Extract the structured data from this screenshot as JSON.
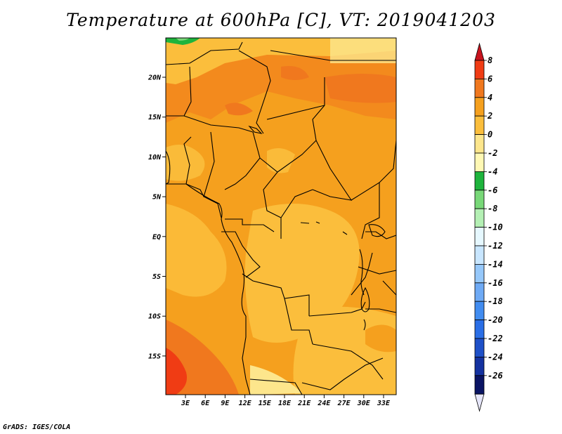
{
  "title": "Temperature at 600hPa [C], VT: 2019041203",
  "footer": "GrADS: IGES/COLA",
  "map": {
    "lat_labels": [
      "20N",
      "15N",
      "10N",
      "5N",
      "EQ",
      "5S",
      "10S",
      "15S"
    ],
    "lon_labels": [
      "3E",
      "6E",
      "9E",
      "12E",
      "15E",
      "18E",
      "21E",
      "24E",
      "27E",
      "30E",
      "33E"
    ]
  },
  "colorbar": {
    "labels": [
      "8",
      "6",
      "4",
      "2",
      "0",
      "-2",
      "-4",
      "-6",
      "-8",
      "-10",
      "-12",
      "-14",
      "-16",
      "-18",
      "-20",
      "-22",
      "-24",
      "-26"
    ],
    "colors": [
      "#c8141e",
      "#f03c14",
      "#f0781e",
      "#f5a01e",
      "#fbbe3c",
      "#fde68c",
      "#fff8b4",
      "#1eb43c",
      "#78d878",
      "#b4f0b4",
      "#e6f8ff",
      "#c8e6ff",
      "#96c8fa",
      "#6eaaf5",
      "#418cf0",
      "#2a6ee6",
      "#1e50c8",
      "#1432a0",
      "#0a1464",
      "#e6e6fa"
    ]
  }
}
